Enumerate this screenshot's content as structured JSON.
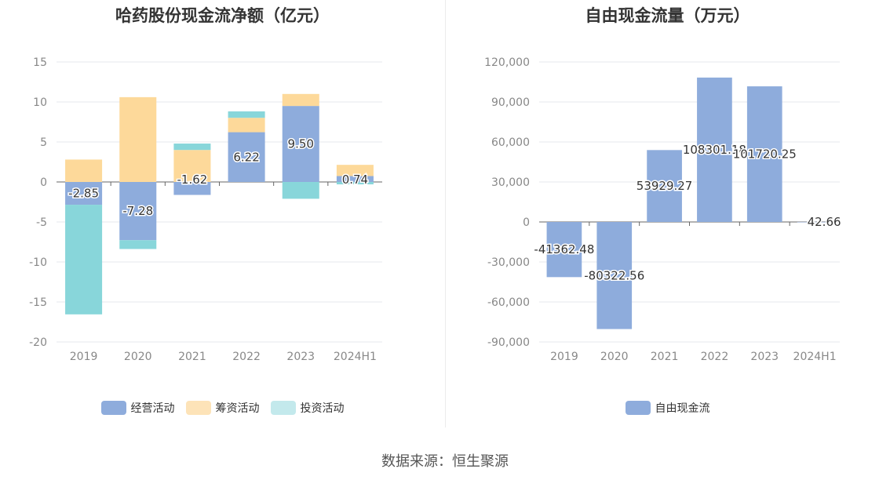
{
  "chart_data": [
    {
      "type": "bar",
      "stacked": true,
      "title": "哈药股份现金流净额（亿元）",
      "categories": [
        "2019",
        "2020",
        "2021",
        "2022",
        "2023",
        "2024H1"
      ],
      "ylim": [
        -20,
        15
      ],
      "yticks": [
        "15",
        "10",
        "5",
        "0",
        "-5",
        "-10",
        "-15",
        "-20"
      ],
      "ytick_values": [
        15,
        10,
        5,
        0,
        -5,
        -10,
        -15,
        -20
      ],
      "grid": true,
      "legend_position": "bottom",
      "series": [
        {
          "name": "经营活动",
          "color": "#8eacdc",
          "values": [
            -2.85,
            -7.28,
            -1.62,
            6.22,
            9.5,
            0.74
          ]
        },
        {
          "name": "筹资活动",
          "color": "#fdd99a",
          "values": [
            2.8,
            10.6,
            4.0,
            1.8,
            1.5,
            1.4
          ]
        },
        {
          "name": "投资活动",
          "color": "#88d6da",
          "values": [
            -13.7,
            -1.1,
            0.8,
            0.8,
            -2.1,
            -0.3
          ]
        }
      ],
      "data_labels": [
        "-2.85",
        "-7.28",
        "-1.62",
        "6.22",
        "9.50",
        "0.74"
      ]
    },
    {
      "type": "bar",
      "title": "自由现金流量（万元）",
      "categories": [
        "2019",
        "2020",
        "2021",
        "2022",
        "2023",
        "2024H1"
      ],
      "ylim": [
        -90000,
        120000
      ],
      "yticks": [
        "120,000",
        "90,000",
        "60,000",
        "30,000",
        "0",
        "-30,000",
        "-60,000",
        "-90,000"
      ],
      "ytick_values": [
        120000,
        90000,
        60000,
        30000,
        0,
        -30000,
        -60000,
        -90000
      ],
      "grid": true,
      "legend_position": "bottom",
      "series": [
        {
          "name": "自由现金流",
          "color": "#8eacdc",
          "values": [
            -41362.48,
            -80322.56,
            53929.27,
            108301.18,
            101720.25,
            42.66
          ]
        }
      ],
      "data_labels": [
        "-41362.48",
        "-80322.56",
        "53929.27",
        "108301.18",
        "101720.25",
        "42.66"
      ]
    }
  ],
  "left": {
    "title": "哈药股份现金流净额（亿元）"
  },
  "right": {
    "title": "自由现金流量（万元）"
  },
  "legend_left": [
    {
      "label": "经营活动",
      "color": "#8eacdc"
    },
    {
      "label": "筹资活动",
      "color": "#fde3b8"
    },
    {
      "label": "投资活动",
      "color": "#c3e9ec"
    }
  ],
  "legend_right": [
    {
      "label": "自由现金流",
      "color": "#8eacdc"
    }
  ],
  "source": "数据来源：恒生聚源"
}
